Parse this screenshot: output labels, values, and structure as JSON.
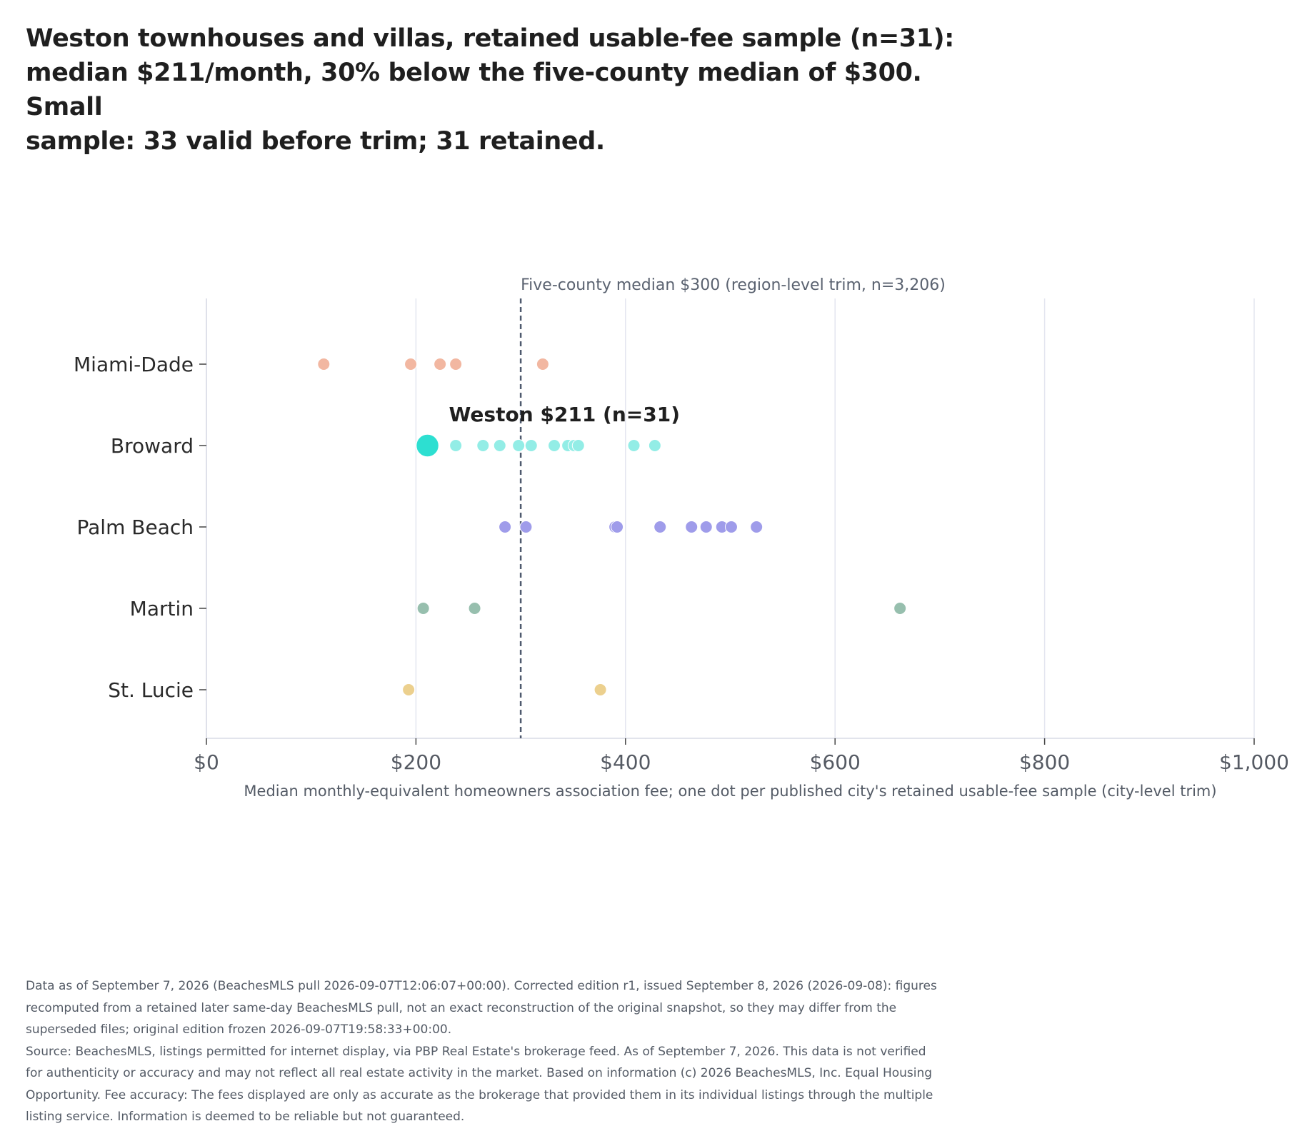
{
  "title_lines": [
    "Weston townhouses and villas, retained usable-fee sample (n=31):",
    "median $211/month, 30% below the five-county median of $300. Small",
    "sample: 33 valid before trim; 31 retained."
  ],
  "footer_lines": [
    "Data as of September 7, 2026 (BeachesMLS pull 2026-09-07T12:06:07+00:00). Corrected edition r1, issued September 8, 2026 (2026-09-08): figures",
    "recomputed from a retained later same-day BeachesMLS pull, not an exact reconstruction of the original snapshot, so they may differ from the",
    "superseded files; original edition frozen 2026-09-07T19:58:33+00:00.",
    "Source: BeachesMLS, listings permitted for internet display, via PBP Real Estate's brokerage feed. As of September 7, 2026. This data is not verified",
    "for authenticity or accuracy and may not reflect all real estate activity in the market. Based on information (c) 2026 BeachesMLS, Inc. Equal Housing",
    "Opportunity. Fee accuracy: The fees displayed are only as accurate as the brokerage that provided them in its individual listings through the multiple",
    "listing service. Information is deemed to be reliable but not guaranteed."
  ],
  "chart_data": {
    "type": "scatter",
    "subtype": "strip",
    "xlabel": "Median monthly-equivalent homeowners association fee; one dot per published city's retained usable-fee sample (city-level trim)",
    "ylabel": "",
    "xlim": [
      0,
      1000
    ],
    "x_ticks": [
      0,
      200,
      400,
      600,
      800,
      1000
    ],
    "x_tick_labels": [
      "$0",
      "$200",
      "$400",
      "$600",
      "$800",
      "$1,000"
    ],
    "grid": "vertical",
    "categories": [
      "Miami-Dade",
      "Broward",
      "Palm Beach",
      "Martin",
      "St. Lucie"
    ],
    "series": [
      {
        "name": "Miami-Dade",
        "color": "#f2b7a1",
        "values": [
          112,
          195,
          223,
          238,
          321
        ]
      },
      {
        "name": "Broward",
        "color": "#93ede6",
        "values": [
          238,
          264,
          280,
          298,
          310,
          332,
          345,
          351,
          355,
          408,
          428
        ]
      },
      {
        "name": "Palm Beach",
        "color": "#9f9cea",
        "values": [
          285,
          305,
          390,
          392,
          433,
          463,
          477,
          492,
          501,
          525
        ]
      },
      {
        "name": "Martin",
        "color": "#97bfae",
        "values": [
          207,
          256,
          662
        ]
      },
      {
        "name": "St. Lucie",
        "color": "#ecd08e",
        "values": [
          193,
          376
        ]
      }
    ],
    "highlight": {
      "category": "Broward",
      "value": 211,
      "label": "Weston $211 (n=31)",
      "color": "#2ddfd1"
    },
    "reference_line": {
      "value": 300,
      "label": "Five-county median $300 (region-level trim, n=3,206)",
      "color": "#4f5a6e"
    }
  }
}
